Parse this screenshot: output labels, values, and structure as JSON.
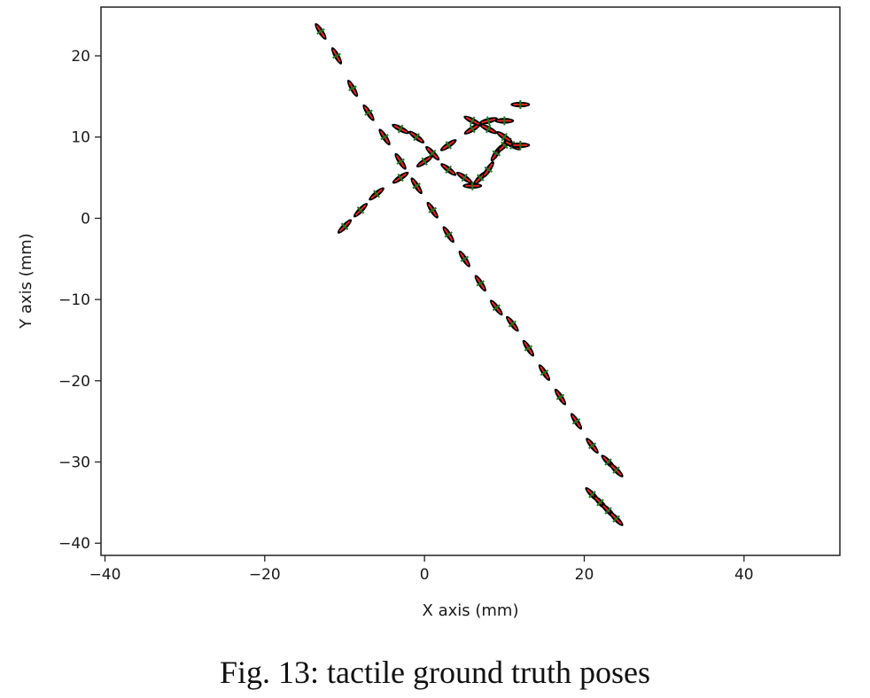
{
  "caption": "Fig. 13: tactile ground truth poses",
  "chart_data": {
    "type": "scatter",
    "xlabel": "X axis (mm)",
    "ylabel": "Y axis (mm)",
    "xlim": [
      -40.5,
      52
    ],
    "ylim": [
      -41.5,
      26
    ],
    "xticks": [
      -40,
      -20,
      0,
      20,
      40
    ],
    "yticks": [
      20,
      10,
      0,
      -10,
      -20,
      -30,
      -40
    ],
    "xtick_labels": [
      "−40",
      "−20",
      "0",
      "20",
      "40"
    ],
    "ytick_labels": [
      "20",
      "10",
      "0",
      "−10",
      "−20",
      "−30",
      "−40"
    ],
    "grid": false,
    "marker_style": "black ellipse with red and green orientation axes",
    "colors": {
      "ellipse": "#000000",
      "axis_a": "#e8231b",
      "axis_b": "#1f7a1f"
    },
    "paths": [
      {
        "x": [
          -13,
          -11,
          -9,
          -7,
          -5,
          -3,
          -1,
          1,
          3,
          5,
          7,
          9,
          11,
          13,
          15,
          17,
          19,
          21,
          23,
          24
        ],
        "y": [
          23,
          20,
          16,
          13,
          10,
          7,
          4,
          1,
          -2,
          -5,
          -8,
          -11,
          -13,
          -16,
          -19,
          -22,
          -25,
          -28,
          -30,
          -31
        ]
      },
      {
        "x": [
          -10,
          -8,
          -6,
          -3,
          0,
          3,
          6,
          8,
          10
        ],
        "y": [
          -1,
          1,
          3,
          5,
          7,
          9,
          11,
          12,
          12
        ]
      },
      {
        "x": [
          -3,
          -1,
          1,
          3,
          5,
          6,
          7,
          8,
          9,
          10
        ],
        "y": [
          11,
          10,
          8,
          6,
          5,
          4,
          5,
          6,
          8,
          9
        ]
      },
      {
        "x": [
          6,
          8,
          10,
          11,
          12
        ],
        "y": [
          12,
          11,
          10,
          9,
          9
        ]
      },
      {
        "x": [
          12
        ],
        "y": [
          14
        ]
      },
      {
        "x": [
          21,
          22,
          23,
          24
        ],
        "y": [
          -34,
          -35,
          -36,
          -37
        ]
      }
    ]
  }
}
